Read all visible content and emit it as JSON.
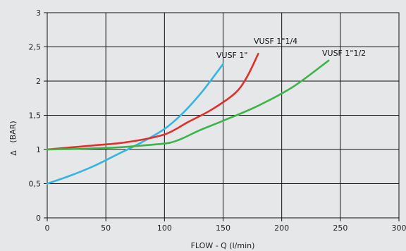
{
  "chart_data": {
    "type": "line",
    "xlabel": "FLOW - Q (l/min)",
    "ylabel_symbol": "Δ",
    "ylabel_unit": "(BAR)",
    "xlim": [
      0,
      300
    ],
    "ylim": [
      0,
      3
    ],
    "x_ticks": [
      0,
      50,
      100,
      150,
      200,
      250,
      300
    ],
    "y_ticks": [
      0,
      0.5,
      1,
      1.5,
      2,
      2.5,
      3
    ],
    "x_tick_labels": [
      "0",
      "50",
      "100",
      "150",
      "200",
      "250",
      "300"
    ],
    "y_tick_labels": [
      "0",
      "0,5",
      "1",
      "1,5",
      "2",
      "2,5",
      "3"
    ],
    "grid": true,
    "series": [
      {
        "name": "VUSF 1\"",
        "color": "#33b5e5",
        "points": [
          [
            0,
            0.5
          ],
          [
            20,
            0.62
          ],
          [
            40,
            0.76
          ],
          [
            60,
            0.93
          ],
          [
            80,
            1.1
          ],
          [
            100,
            1.3
          ],
          [
            115,
            1.52
          ],
          [
            130,
            1.8
          ],
          [
            140,
            2.02
          ],
          [
            150,
            2.25
          ]
        ]
      },
      {
        "name": "VUSF 1\"1/4",
        "color": "#e0302c",
        "points": [
          [
            0,
            1.0
          ],
          [
            20,
            1.03
          ],
          [
            40,
            1.06
          ],
          [
            60,
            1.09
          ],
          [
            80,
            1.14
          ],
          [
            100,
            1.22
          ],
          [
            110,
            1.3
          ],
          [
            120,
            1.4
          ],
          [
            140,
            1.58
          ],
          [
            160,
            1.82
          ],
          [
            170,
            2.05
          ],
          [
            180,
            2.4
          ]
        ]
      },
      {
        "name": "VUSF 1\"1/2",
        "color": "#3cb44a",
        "points": [
          [
            0,
            1.0
          ],
          [
            30,
            1.01
          ],
          [
            60,
            1.03
          ],
          [
            90,
            1.07
          ],
          [
            105,
            1.1
          ],
          [
            115,
            1.16
          ],
          [
            130,
            1.28
          ],
          [
            150,
            1.42
          ],
          [
            180,
            1.64
          ],
          [
            210,
            1.92
          ],
          [
            240,
            2.3
          ]
        ]
      }
    ]
  },
  "labels": {
    "vusf1": "VUSF 1\"",
    "vusf114": "VUSF 1\"1/4",
    "vusf112": "VUSF 1\"1/2"
  }
}
